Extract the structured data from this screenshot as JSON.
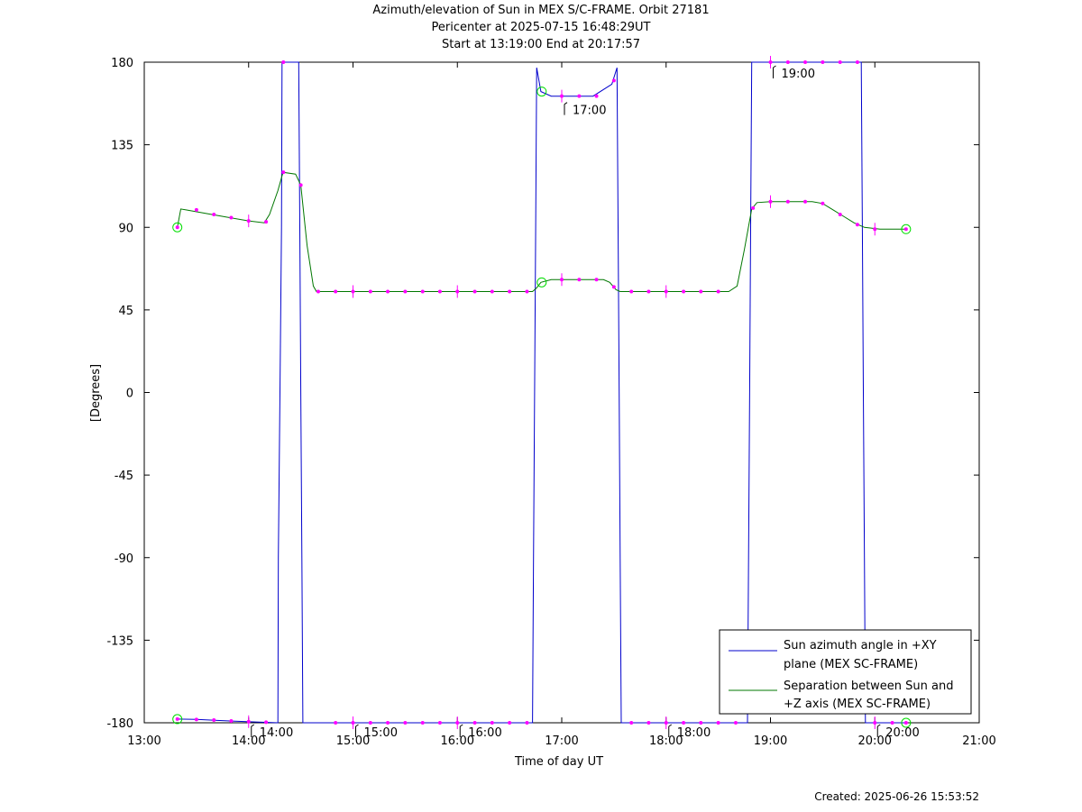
{
  "title_lines": [
    "Azimuth/elevation of Sun in MEX S/C-FRAME.  Orbit 27181",
    "Pericenter at 2025-07-15 16:48:29UT",
    "Start at 13:19:00 End at 20:17:57"
  ],
  "created": "Created: 2025-06-26 15:53:52",
  "chart_data": {
    "type": "line",
    "xlabel": "Time of day UT",
    "ylabel": "[Degrees]",
    "xlim": [
      13.0,
      21.0
    ],
    "ylim": [
      -180,
      180
    ],
    "xticks": [
      13,
      14,
      15,
      16,
      17,
      18,
      19,
      20,
      21
    ],
    "xtick_labels": [
      "13:00",
      "14:00",
      "15:00",
      "16:00",
      "17:00",
      "18:00",
      "19:00",
      "20:00",
      "21:00"
    ],
    "yticks": [
      180,
      135,
      90,
      45,
      0,
      -45,
      -90,
      -135,
      -180
    ],
    "ytick_labels": [
      "180",
      "135",
      "90",
      "45",
      "0",
      "-45",
      "-90",
      "-135",
      "-180"
    ],
    "hour_annotations": [
      {
        "label": "14:00",
        "x": 14.0,
        "y": -180
      },
      {
        "label": "15:00",
        "x": 15.0,
        "y": -180
      },
      {
        "label": "16:00",
        "x": 16.0,
        "y": -180
      },
      {
        "label": "17:00",
        "x": 17.0,
        "y": 161
      },
      {
        "label": "18:00",
        "x": 18.0,
        "y": -180
      },
      {
        "label": "19:00",
        "x": 19.0,
        "y": 180
      },
      {
        "label": "20:00",
        "x": 20.0,
        "y": -180
      }
    ],
    "legend_position": "bottom-right",
    "series": [
      {
        "name": "Sun azimuth angle in +XY plane (MEX SC-FRAME)",
        "name_lines": [
          "Sun azimuth angle in +XY",
          "plane (MEX SC-FRAME)"
        ],
        "color": "#0000cc",
        "points": [
          [
            13.317,
            -178
          ],
          [
            13.5,
            -178.2
          ],
          [
            13.7,
            -178.7
          ],
          [
            13.9,
            -179.2
          ],
          [
            14.1,
            -179.6
          ],
          [
            14.28,
            -180
          ],
          [
            14.285,
            -90
          ],
          [
            14.3,
            0
          ],
          [
            14.315,
            90
          ],
          [
            14.32,
            180
          ],
          [
            14.48,
            180
          ],
          [
            14.49,
            90
          ],
          [
            14.5,
            0
          ],
          [
            14.51,
            -90
          ],
          [
            14.52,
            -180
          ],
          [
            16.72,
            -180
          ],
          [
            16.73,
            -90
          ],
          [
            16.74,
            0
          ],
          [
            16.75,
            90
          ],
          [
            16.76,
            177
          ],
          [
            16.8,
            164
          ],
          [
            16.9,
            161.5
          ],
          [
            17.3,
            161.5
          ],
          [
            17.48,
            168
          ],
          [
            17.53,
            177
          ],
          [
            17.54,
            90
          ],
          [
            17.55,
            0
          ],
          [
            17.56,
            -90
          ],
          [
            17.57,
            -180
          ],
          [
            18.78,
            -180
          ],
          [
            18.79,
            -90
          ],
          [
            18.8,
            0
          ],
          [
            18.81,
            90
          ],
          [
            18.82,
            180
          ],
          [
            19.87,
            180
          ],
          [
            19.88,
            90
          ],
          [
            19.89,
            0
          ],
          [
            19.9,
            -90
          ],
          [
            19.91,
            -180
          ],
          [
            20.299,
            -180
          ]
        ],
        "start_marker": [
          13.317,
          -178
        ],
        "end_marker": [
          20.299,
          -180
        ]
      },
      {
        "name": "Separation between Sun and +Z axis (MEX SC-FRAME)",
        "name_lines": [
          "Separation between Sun and",
          "+Z axis (MEX SC-FRAME)"
        ],
        "color": "#007700",
        "points": [
          [
            13.317,
            90
          ],
          [
            13.35,
            100
          ],
          [
            13.4,
            99.5
          ],
          [
            13.6,
            97.5
          ],
          [
            13.8,
            95.5
          ],
          [
            14.0,
            93.5
          ],
          [
            14.15,
            92.5
          ],
          [
            14.2,
            97
          ],
          [
            14.28,
            110
          ],
          [
            14.33,
            120
          ],
          [
            14.45,
            119
          ],
          [
            14.5,
            113
          ],
          [
            14.56,
            80
          ],
          [
            14.62,
            58
          ],
          [
            14.65,
            55
          ],
          [
            16.72,
            55
          ],
          [
            16.76,
            57
          ],
          [
            16.8,
            60
          ],
          [
            16.9,
            61.5
          ],
          [
            17.4,
            61.5
          ],
          [
            17.46,
            60
          ],
          [
            17.52,
            56
          ],
          [
            17.56,
            55
          ],
          [
            18.6,
            55
          ],
          [
            18.68,
            58
          ],
          [
            18.75,
            78
          ],
          [
            18.82,
            100
          ],
          [
            18.87,
            103.5
          ],
          [
            19.0,
            104
          ],
          [
            19.4,
            104
          ],
          [
            19.5,
            103
          ],
          [
            19.6,
            99.5
          ],
          [
            19.7,
            96
          ],
          [
            19.8,
            92.5
          ],
          [
            19.9,
            90
          ],
          [
            20.05,
            89
          ],
          [
            20.299,
            89
          ]
        ],
        "start_marker": [
          13.317,
          90
        ],
        "end_marker": [
          20.299,
          89
        ]
      }
    ],
    "pericenter_markers": [
      [
        16.808,
        164
      ],
      [
        16.808,
        60
      ]
    ],
    "sample_points": [
      [
        13.5,
        -178.2
      ],
      [
        13.667,
        -178.5
      ],
      [
        13.833,
        -179
      ],
      [
        14.0,
        -179.4
      ],
      [
        14.167,
        -179.7
      ],
      [
        14.333,
        180
      ],
      [
        14.833,
        -180
      ],
      [
        15.0,
        -180
      ],
      [
        15.167,
        -180
      ],
      [
        15.333,
        -180
      ],
      [
        15.5,
        -180
      ],
      [
        15.667,
        -180
      ],
      [
        15.833,
        -180
      ],
      [
        16.0,
        -180
      ],
      [
        16.167,
        -180
      ],
      [
        16.333,
        -180
      ],
      [
        16.5,
        -180
      ],
      [
        16.667,
        -180
      ],
      [
        17.0,
        161.5
      ],
      [
        17.167,
        161.5
      ],
      [
        17.333,
        161.5
      ],
      [
        17.5,
        170
      ],
      [
        17.667,
        -180
      ],
      [
        17.833,
        -180
      ],
      [
        18.0,
        -180
      ],
      [
        18.167,
        -180
      ],
      [
        18.333,
        -180
      ],
      [
        18.5,
        -180
      ],
      [
        18.667,
        -180
      ],
      [
        19.0,
        180
      ],
      [
        19.167,
        180
      ],
      [
        19.333,
        180
      ],
      [
        19.5,
        180
      ],
      [
        19.667,
        180
      ],
      [
        19.833,
        180
      ],
      [
        20.0,
        -180
      ],
      [
        20.167,
        -180
      ],
      [
        13.5,
        99.5
      ],
      [
        13.667,
        97
      ],
      [
        13.833,
        95.3
      ],
      [
        14.0,
        93.5
      ],
      [
        14.167,
        93
      ],
      [
        14.333,
        120
      ],
      [
        14.5,
        113
      ],
      [
        14.667,
        55
      ],
      [
        14.833,
        55
      ],
      [
        15.0,
        55
      ],
      [
        15.167,
        55
      ],
      [
        15.333,
        55
      ],
      [
        15.5,
        55
      ],
      [
        15.667,
        55
      ],
      [
        15.833,
        55
      ],
      [
        16.0,
        55
      ],
      [
        16.167,
        55
      ],
      [
        16.333,
        55
      ],
      [
        16.5,
        55
      ],
      [
        16.667,
        55
      ],
      [
        17.0,
        61.5
      ],
      [
        17.167,
        61.5
      ],
      [
        17.333,
        61.5
      ],
      [
        17.5,
        57.5
      ],
      [
        17.667,
        55
      ],
      [
        17.833,
        55
      ],
      [
        18.0,
        55
      ],
      [
        18.167,
        55
      ],
      [
        18.333,
        55
      ],
      [
        18.5,
        55
      ],
      [
        18.833,
        100.5
      ],
      [
        19.0,
        104
      ],
      [
        19.167,
        104
      ],
      [
        19.333,
        104
      ],
      [
        19.5,
        103
      ],
      [
        19.667,
        97
      ],
      [
        19.833,
        91.5
      ],
      [
        20.0,
        89
      ]
    ],
    "hour_points": [
      [
        14.0,
        -179.4
      ],
      [
        15.0,
        -180
      ],
      [
        16.0,
        -180
      ],
      [
        17.0,
        161.5
      ],
      [
        18.0,
        -180
      ],
      [
        19.0,
        180
      ],
      [
        20.0,
        -180
      ],
      [
        14.0,
        93.5
      ],
      [
        15.0,
        55
      ],
      [
        16.0,
        55
      ],
      [
        17.0,
        61.5
      ],
      [
        18.0,
        55
      ],
      [
        19.0,
        104
      ],
      [
        20.0,
        89
      ]
    ]
  }
}
